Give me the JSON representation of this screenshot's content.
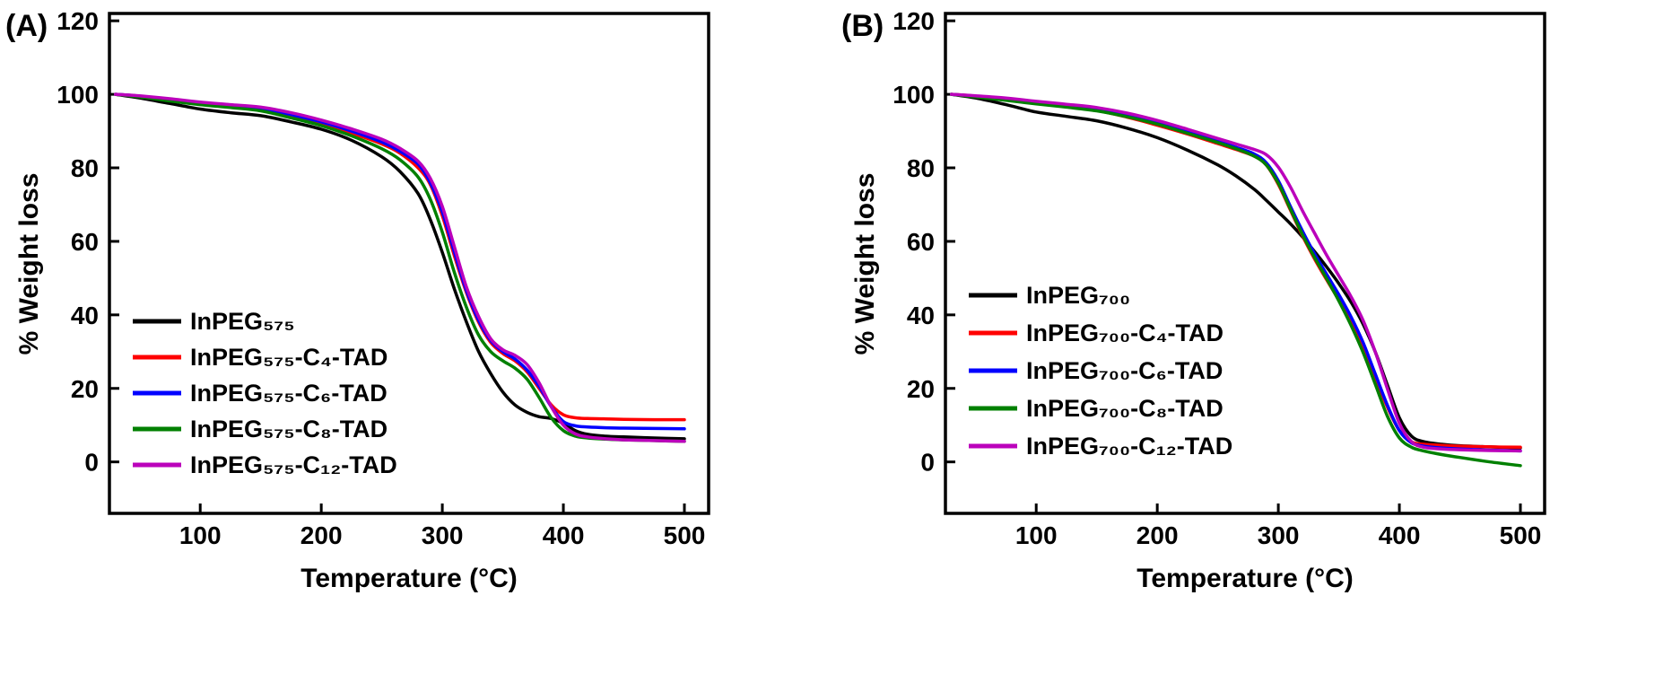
{
  "figure": {
    "panels": [
      {
        "label": "(A)"
      },
      {
        "label": "(B)"
      }
    ]
  },
  "chart_data": [
    {
      "type": "line",
      "title": "",
      "panel": "(A)",
      "xlabel": "Temperature (°C)",
      "ylabel": "% Weight loss",
      "xlim": [
        25,
        520
      ],
      "ylim": [
        -14,
        122
      ],
      "x_ticks": [
        100,
        200,
        300,
        400,
        500
      ],
      "y_ticks": [
        0,
        20,
        40,
        60,
        80,
        100,
        120
      ],
      "grid": false,
      "legend_position": "lower-left-inside",
      "x": [
        30,
        50,
        75,
        100,
        125,
        150,
        175,
        200,
        225,
        250,
        265,
        280,
        290,
        300,
        310,
        320,
        330,
        340,
        350,
        360,
        370,
        380,
        390,
        400,
        410,
        420,
        435,
        450,
        475,
        500
      ],
      "series": [
        {
          "name": "InPEG₅₇₅",
          "color": "#000000",
          "values": [
            100,
            99,
            97.5,
            96,
            95,
            94.2,
            92.5,
            90.5,
            87.5,
            83,
            79,
            73,
            66,
            57,
            47,
            38,
            30,
            24,
            19,
            15.5,
            13.5,
            12.3,
            11.8,
            10.5,
            8.5,
            7.5,
            7,
            6.8,
            6.5,
            6.3
          ]
        },
        {
          "name": "InPEG₅₇₅-C₄-TAD",
          "color": "#ff0000",
          "values": [
            100,
            99.5,
            98.6,
            97.6,
            96.8,
            96,
            94.2,
            92.2,
            89.5,
            86.5,
            84,
            80,
            75.5,
            67,
            56,
            46,
            38,
            32.5,
            29.5,
            27.5,
            24.5,
            20,
            15.5,
            12.8,
            12,
            11.8,
            11.7,
            11.6,
            11.5,
            11.5
          ]
        },
        {
          "name": "InPEG₅₇₅-C₆-TAD",
          "color": "#0000ff",
          "values": [
            100,
            99.5,
            98.6,
            97.6,
            96.9,
            96.2,
            94.5,
            92.5,
            90,
            87,
            84.5,
            81,
            76,
            68,
            57,
            46.5,
            38.5,
            33,
            30,
            28,
            25,
            20.5,
            15,
            11,
            9.8,
            9.5,
            9.3,
            9.2,
            9.1,
            9
          ]
        },
        {
          "name": "InPEG₅₇₅-C₈-TAD",
          "color": "#008000",
          "values": [
            100,
            99.3,
            98.2,
            97.2,
            96.4,
            95.5,
            93.6,
            91.5,
            88.7,
            85.2,
            82.2,
            77.5,
            71.5,
            62.5,
            51.5,
            42,
            34.5,
            30,
            27.5,
            25.5,
            22.5,
            17.5,
            12,
            8.5,
            7,
            6.5,
            6.2,
            6,
            5.8,
            5.6
          ]
        },
        {
          "name": "InPEG₅₇₅-C₁₂-TAD",
          "color": "#bb00bb",
          "values": [
            100,
            99.6,
            98.8,
            97.9,
            97.2,
            96.5,
            95,
            93,
            90.6,
            87.8,
            85.3,
            81.8,
            77.2,
            69.5,
            58.5,
            47.5,
            39.5,
            33.5,
            30.5,
            29,
            26.5,
            21.5,
            15,
            10,
            7.6,
            6.8,
            6.3,
            6,
            5.8,
            5.6
          ]
        }
      ]
    },
    {
      "type": "line",
      "title": "",
      "panel": "(B)",
      "xlabel": "Temperature (°C)",
      "ylabel": "% Weight loss",
      "xlim": [
        25,
        520
      ],
      "ylim": [
        -14,
        122
      ],
      "x_ticks": [
        100,
        200,
        300,
        400,
        500
      ],
      "y_ticks": [
        0,
        20,
        40,
        60,
        80,
        100,
        120
      ],
      "grid": false,
      "legend_position": "lower-left-inside",
      "x": [
        30,
        50,
        75,
        100,
        125,
        150,
        175,
        200,
        225,
        250,
        265,
        280,
        290,
        300,
        310,
        320,
        330,
        340,
        350,
        360,
        370,
        380,
        390,
        400,
        410,
        420,
        435,
        450,
        475,
        500
      ],
      "series": [
        {
          "name": "InPEG₇₀₀",
          "color": "#000000",
          "values": [
            100,
            99,
            97.2,
            95.2,
            94,
            92.8,
            90.8,
            88.2,
            84.8,
            80.8,
            77.8,
            74.2,
            71.2,
            68,
            64.8,
            61.2,
            57.2,
            53,
            48.5,
            43.5,
            37.5,
            30,
            21,
            12,
            7,
            5.5,
            4.8,
            4.4,
            4.1,
            3.8
          ]
        },
        {
          "name": "InPEG₇₀₀-C₄-TAD",
          "color": "#ff0000",
          "values": [
            100,
            99.5,
            98.6,
            97.6,
            96.6,
            95.6,
            93.8,
            91.6,
            89.2,
            86.6,
            85,
            83.2,
            80.8,
            75.5,
            68.5,
            61.5,
            55.2,
            49.5,
            44,
            38,
            31,
            23,
            15,
            8.5,
            5.5,
            4.8,
            4.5,
            4.3,
            4.1,
            4
          ]
        },
        {
          "name": "InPEG₇₀₀-C₆-TAD",
          "color": "#0000ff",
          "values": [
            100,
            99.5,
            98.7,
            97.7,
            96.9,
            95.9,
            94.2,
            92.2,
            89.7,
            87.2,
            85.6,
            83.8,
            81.4,
            76.5,
            69.5,
            62.8,
            56.6,
            51,
            45.5,
            39.5,
            32.5,
            24,
            15.5,
            8.5,
            5.2,
            4.3,
            3.8,
            3.5,
            3.2,
            3
          ]
        },
        {
          "name": "InPEG₇₀₀-C₈-TAD",
          "color": "#008000",
          "values": [
            100,
            99.3,
            98.4,
            97.4,
            96.5,
            95.5,
            93.9,
            91.9,
            89.4,
            86.9,
            85.2,
            83.2,
            80.8,
            75.8,
            68.8,
            61.8,
            55.6,
            49.8,
            43.8,
            37.2,
            29.8,
            21.2,
            12.5,
            6.5,
            4,
            3,
            2,
            1.2,
            0,
            -1
          ]
        },
        {
          "name": "InPEG₇₀₀-C₁₂-TAD",
          "color": "#bb00bb",
          "values": [
            100,
            99.6,
            99,
            98.1,
            97.3,
            96.4,
            94.9,
            92.9,
            90.5,
            88,
            86.5,
            85,
            83.6,
            80.2,
            74.8,
            68.3,
            62.2,
            56.2,
            50.6,
            45,
            38.5,
            30,
            20,
            10.5,
            5.5,
            4,
            3.5,
            3.3,
            3.1,
            3
          ]
        }
      ]
    }
  ]
}
